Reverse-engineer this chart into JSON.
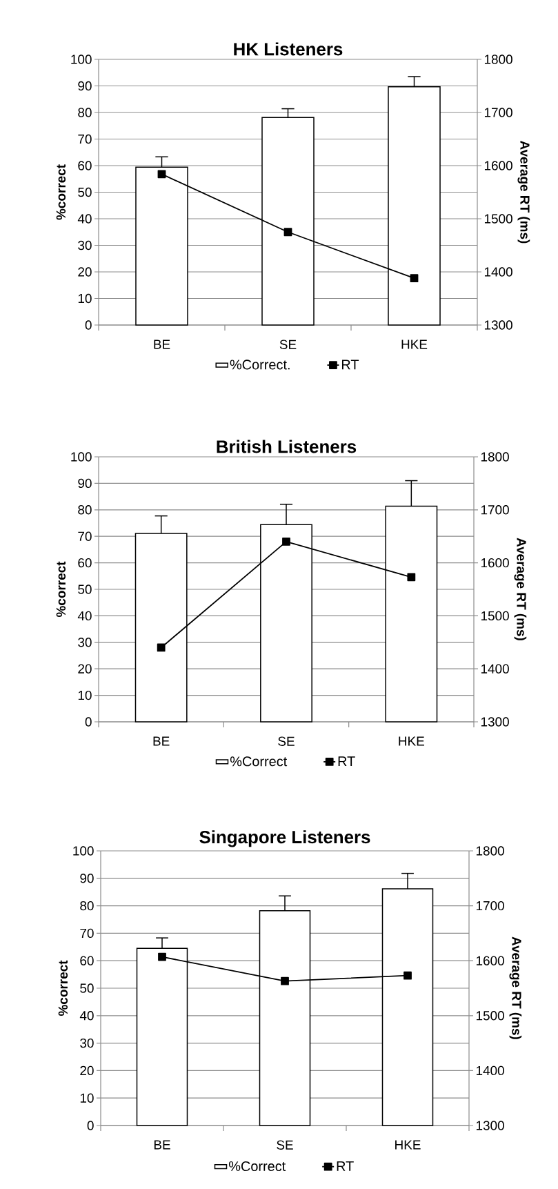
{
  "chart_data": [
    {
      "type": "bar",
      "title": "HK Listeners",
      "categories": [
        "BE",
        "SE",
        "HKE"
      ],
      "ylabel": "%correct",
      "y2label": "Average RT (ms)",
      "ylim": [
        0,
        100
      ],
      "yticks": [
        0,
        10,
        20,
        30,
        40,
        50,
        60,
        70,
        80,
        90,
        100
      ],
      "y2lim": [
        1300,
        1800
      ],
      "y2ticks": [
        1300,
        1400,
        1500,
        1600,
        1700,
        1800
      ],
      "grid": "y",
      "legend": "bottom",
      "series": [
        {
          "name": "%Correct.",
          "color": "#ffffff",
          "values": [
            59.4,
            78.1,
            89.7
          ],
          "errors": [
            [
              59.4,
              63.3
            ],
            [
              78.1,
              81.4
            ],
            [
              89.7,
              93.5
            ]
          ]
        },
        {
          "name": "RT",
          "type": "line",
          "axis": "y2",
          "color": "#000000",
          "marker": "square",
          "values": [
            1584,
            1475,
            1388
          ]
        }
      ]
    },
    {
      "type": "bar",
      "title": "British Listeners",
      "categories": [
        "BE",
        "SE",
        "HKE"
      ],
      "ylabel": "%correct",
      "y2label": "Average RT (ms)",
      "ylim": [
        0,
        100
      ],
      "yticks": [
        0,
        10,
        20,
        30,
        40,
        50,
        60,
        70,
        80,
        90,
        100
      ],
      "y2lim": [
        1300,
        1800
      ],
      "y2ticks": [
        1300,
        1400,
        1500,
        1600,
        1700,
        1800
      ],
      "grid": "y",
      "legend": "bottom",
      "series": [
        {
          "name": "%Correct",
          "color": "#ffffff",
          "values": [
            71.1,
            74.4,
            81.4
          ],
          "errors": [
            [
              71.1,
              77.7
            ],
            [
              74.4,
              82.1
            ],
            [
              81.4,
              91.0
            ]
          ]
        },
        {
          "name": "RT",
          "type": "line",
          "axis": "y2",
          "color": "#000000",
          "marker": "square",
          "values": [
            1440,
            1640,
            1573
          ]
        }
      ]
    },
    {
      "type": "bar",
      "title": "Singapore Listeners",
      "categories": [
        "BE",
        "SE",
        "HKE"
      ],
      "ylabel": "%correct",
      "y2label": "Average RT (ms)",
      "ylim": [
        0,
        100
      ],
      "yticks": [
        0,
        10,
        20,
        30,
        40,
        50,
        60,
        70,
        80,
        90,
        100
      ],
      "y2lim": [
        1300,
        1800
      ],
      "y2ticks": [
        1300,
        1400,
        1500,
        1600,
        1700,
        1800
      ],
      "grid": "y",
      "legend": "bottom",
      "series": [
        {
          "name": "%Correct",
          "color": "#ffffff",
          "values": [
            64.5,
            78.2,
            86.2
          ],
          "errors": [
            [
              64.5,
              68.3
            ],
            [
              78.2,
              83.6
            ],
            [
              86.2,
              91.8
            ]
          ]
        },
        {
          "name": "RT",
          "type": "line",
          "axis": "y2",
          "color": "#000000",
          "marker": "square",
          "values": [
            1607,
            1563,
            1573
          ]
        }
      ]
    }
  ]
}
